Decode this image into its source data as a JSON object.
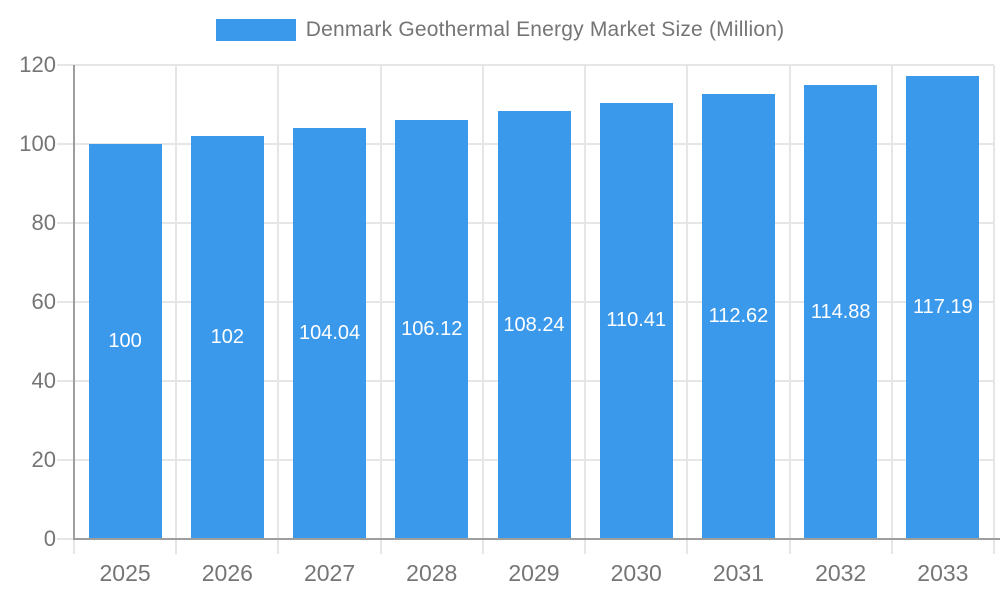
{
  "legend": {
    "label": "Denmark Geothermal Energy Market Size (Million)"
  },
  "chart_data": {
    "type": "bar",
    "title": "Denmark Geothermal Energy Market Size (Million)",
    "categories": [
      "2025",
      "2026",
      "2027",
      "2028",
      "2029",
      "2030",
      "2031",
      "2032",
      "2033"
    ],
    "values": [
      100,
      102,
      104.04,
      106.12,
      108.24,
      110.41,
      112.62,
      114.88,
      117.19
    ],
    "bar_labels": [
      "100",
      "102",
      "104.04",
      "106.12",
      "108.24",
      "110.41",
      "112.62",
      "114.88",
      "117.19"
    ],
    "xlabel": "",
    "ylabel": "",
    "ylim": [
      0,
      120
    ],
    "yticks": [
      0,
      20,
      40,
      60,
      80,
      100,
      120
    ],
    "grid": true,
    "legend_position": "top"
  },
  "colors": {
    "bar": "#3b99ec",
    "axis": "#9e9e9e",
    "grid": "#e6e6e6",
    "tick_text": "#757575",
    "bar_label_text": "#ffffff",
    "legend_text": "#757575"
  }
}
